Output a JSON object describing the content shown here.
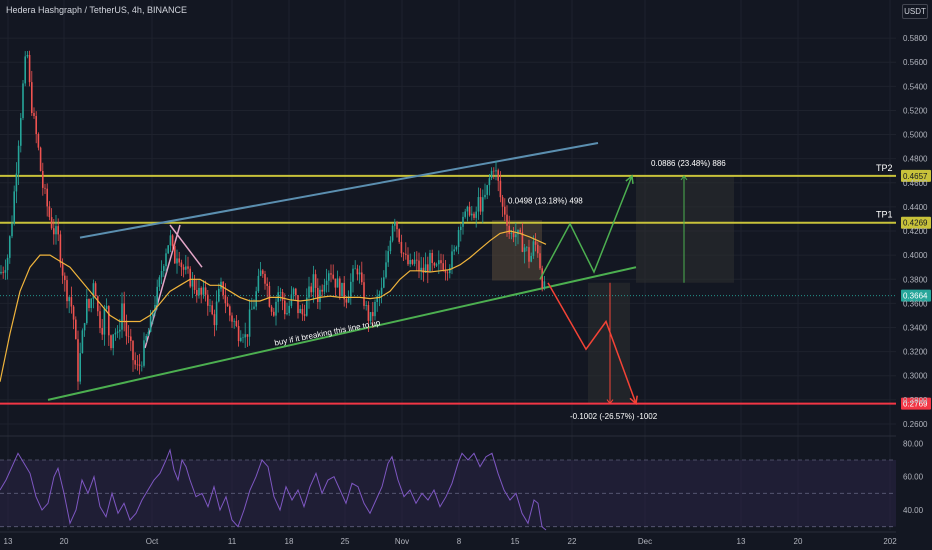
{
  "header": {
    "symbol": "Hedera Hashgraph / TetherUS",
    "interval": "4h",
    "exchange": "BINANCE",
    "currency": "USDT"
  },
  "colors": {
    "background": "#131722",
    "grid": "#1e222d",
    "axis_text": "#b2b5be",
    "candle_up": "#26a69a",
    "candle_down": "#ef5350",
    "ma": "#f0b43c",
    "channel_upper": "#5b8fb0",
    "channel_lower": "#4caf50",
    "tp_level": "#c8c23a",
    "stop_level": "#f23645",
    "rsi": "#7e57c2",
    "rsi_band": "#2a2545",
    "projection_up": "#4caf50",
    "projection_down": "#f44336"
  },
  "chart_data": [
    {
      "type": "candlestick",
      "title": "",
      "x_ticks": [
        "13",
        "20",
        "Oct",
        "11",
        "18",
        "25",
        "Nov",
        "8",
        "15",
        "22",
        "Dec",
        "13",
        "20",
        "202"
      ],
      "y_ticks": [
        0.26,
        0.28,
        0.3,
        0.32,
        0.34,
        0.36,
        0.38,
        0.4,
        0.42,
        0.44,
        0.46,
        0.48,
        0.5,
        0.52,
        0.54,
        0.56,
        0.58
      ],
      "y_tick_labels": [
        "0.2600",
        "0.2800",
        "0.3000",
        "0.3200",
        "0.3400",
        "0.3600",
        "0.3800",
        "0.4000",
        "0.4200",
        "0.4400",
        "0.4600",
        "0.4800",
        "0.5000",
        "0.5200",
        "0.5400",
        "0.5600",
        "0.5800"
      ],
      "ylim": [
        0.255,
        0.595
      ],
      "price_path": [
        [
          0,
          0.385
        ],
        [
          4,
          0.39
        ],
        [
          8,
          0.4
        ],
        [
          12,
          0.43
        ],
        [
          16,
          0.47
        ],
        [
          20,
          0.51
        ],
        [
          24,
          0.55
        ],
        [
          27,
          0.57
        ],
        [
          30,
          0.535
        ],
        [
          34,
          0.51
        ],
        [
          38,
          0.49
        ],
        [
          42,
          0.46
        ],
        [
          46,
          0.445
        ],
        [
          50,
          0.43
        ],
        [
          54,
          0.42
        ],
        [
          58,
          0.415
        ],
        [
          62,
          0.39
        ],
        [
          66,
          0.37
        ],
        [
          70,
          0.365
        ],
        [
          74,
          0.345
        ],
        [
          78,
          0.3
        ],
        [
          82,
          0.33
        ],
        [
          86,
          0.36
        ],
        [
          90,
          0.355
        ],
        [
          94,
          0.385
        ],
        [
          98,
          0.35
        ],
        [
          102,
          0.34
        ],
        [
          106,
          0.36
        ],
        [
          110,
          0.325
        ],
        [
          114,
          0.34
        ],
        [
          118,
          0.33
        ],
        [
          122,
          0.36
        ],
        [
          126,
          0.335
        ],
        [
          130,
          0.325
        ],
        [
          134,
          0.31
        ],
        [
          138,
          0.305
        ],
        [
          142,
          0.315
        ],
        [
          146,
          0.33
        ],
        [
          150,
          0.34
        ],
        [
          154,
          0.36
        ],
        [
          158,
          0.37
        ],
        [
          162,
          0.39
        ],
        [
          166,
          0.405
        ],
        [
          170,
          0.415
        ],
        [
          174,
          0.395
        ],
        [
          178,
          0.405
        ],
        [
          182,
          0.39
        ],
        [
          186,
          0.385
        ],
        [
          190,
          0.38
        ],
        [
          194,
          0.375
        ],
        [
          198,
          0.37
        ],
        [
          202,
          0.365
        ],
        [
          206,
          0.37
        ],
        [
          210,
          0.355
        ],
        [
          214,
          0.345
        ],
        [
          218,
          0.365
        ],
        [
          222,
          0.375
        ],
        [
          226,
          0.36
        ],
        [
          230,
          0.35
        ],
        [
          234,
          0.345
        ],
        [
          238,
          0.335
        ],
        [
          242,
          0.34
        ],
        [
          246,
          0.33
        ],
        [
          250,
          0.35
        ],
        [
          254,
          0.36
        ],
        [
          258,
          0.375
        ],
        [
          262,
          0.39
        ],
        [
          266,
          0.38
        ],
        [
          270,
          0.36
        ],
        [
          274,
          0.355
        ],
        [
          278,
          0.37
        ],
        [
          282,
          0.365
        ],
        [
          286,
          0.35
        ],
        [
          290,
          0.36
        ],
        [
          294,
          0.37
        ],
        [
          298,
          0.355
        ],
        [
          302,
          0.35
        ],
        [
          306,
          0.36
        ],
        [
          310,
          0.37
        ],
        [
          314,
          0.38
        ],
        [
          318,
          0.365
        ],
        [
          322,
          0.375
        ],
        [
          326,
          0.385
        ],
        [
          330,
          0.39
        ],
        [
          334,
          0.38
        ],
        [
          338,
          0.375
        ],
        [
          342,
          0.37
        ],
        [
          346,
          0.365
        ],
        [
          350,
          0.375
        ],
        [
          354,
          0.385
        ],
        [
          358,
          0.39
        ],
        [
          362,
          0.37
        ],
        [
          366,
          0.355
        ],
        [
          370,
          0.345
        ],
        [
          374,
          0.355
        ],
        [
          378,
          0.365
        ],
        [
          382,
          0.37
        ],
        [
          386,
          0.39
        ],
        [
          390,
          0.415
        ],
        [
          394,
          0.435
        ],
        [
          398,
          0.42
        ],
        [
          402,
          0.405
        ],
        [
          406,
          0.395
        ],
        [
          410,
          0.39
        ],
        [
          414,
          0.395
        ],
        [
          418,
          0.39
        ],
        [
          422,
          0.385
        ],
        [
          426,
          0.39
        ],
        [
          430,
          0.395
        ],
        [
          434,
          0.385
        ],
        [
          438,
          0.39
        ],
        [
          442,
          0.395
        ],
        [
          446,
          0.39
        ],
        [
          450,
          0.395
        ],
        [
          454,
          0.4
        ],
        [
          458,
          0.42
        ],
        [
          462,
          0.435
        ],
        [
          466,
          0.43
        ],
        [
          470,
          0.44
        ],
        [
          474,
          0.425
        ],
        [
          478,
          0.445
        ],
        [
          482,
          0.44
        ],
        [
          486,
          0.45
        ],
        [
          490,
          0.465
        ],
        [
          494,
          0.475
        ],
        [
          498,
          0.46
        ],
        [
          502,
          0.44
        ],
        [
          506,
          0.435
        ],
        [
          510,
          0.415
        ],
        [
          514,
          0.42
        ],
        [
          518,
          0.415
        ],
        [
          522,
          0.41
        ],
        [
          526,
          0.405
        ],
        [
          530,
          0.395
        ],
        [
          534,
          0.41
        ],
        [
          538,
          0.405
        ],
        [
          542,
          0.38
        ],
        [
          546,
          0.3664
        ]
      ],
      "moving_average": [
        [
          0,
          0.295
        ],
        [
          10,
          0.335
        ],
        [
          20,
          0.37
        ],
        [
          30,
          0.39
        ],
        [
          40,
          0.4
        ],
        [
          50,
          0.4
        ],
        [
          60,
          0.395
        ],
        [
          70,
          0.39
        ],
        [
          80,
          0.38
        ],
        [
          90,
          0.37
        ],
        [
          100,
          0.36
        ],
        [
          110,
          0.35
        ],
        [
          120,
          0.345
        ],
        [
          130,
          0.345
        ],
        [
          140,
          0.345
        ],
        [
          150,
          0.35
        ],
        [
          160,
          0.36
        ],
        [
          170,
          0.37
        ],
        [
          180,
          0.375
        ],
        [
          190,
          0.38
        ],
        [
          200,
          0.38
        ],
        [
          210,
          0.375
        ],
        [
          220,
          0.375
        ],
        [
          230,
          0.37
        ],
        [
          240,
          0.365
        ],
        [
          250,
          0.362
        ],
        [
          260,
          0.362
        ],
        [
          270,
          0.365
        ],
        [
          280,
          0.365
        ],
        [
          290,
          0.363
        ],
        [
          300,
          0.362
        ],
        [
          310,
          0.363
        ],
        [
          320,
          0.365
        ],
        [
          330,
          0.366
        ],
        [
          340,
          0.365
        ],
        [
          350,
          0.365
        ],
        [
          360,
          0.365
        ],
        [
          370,
          0.364
        ],
        [
          380,
          0.365
        ],
        [
          390,
          0.37
        ],
        [
          400,
          0.38
        ],
        [
          410,
          0.387
        ],
        [
          420,
          0.387
        ],
        [
          430,
          0.386
        ],
        [
          440,
          0.387
        ],
        [
          450,
          0.388
        ],
        [
          460,
          0.392
        ],
        [
          470,
          0.398
        ],
        [
          480,
          0.405
        ],
        [
          490,
          0.412
        ],
        [
          500,
          0.418
        ],
        [
          510,
          0.42
        ],
        [
          520,
          0.418
        ],
        [
          530,
          0.415
        ],
        [
          538,
          0.412
        ],
        [
          546,
          0.409
        ]
      ],
      "levels": [
        {
          "name": "TP2",
          "price": 0.4657,
          "price_label": "0.4657"
        },
        {
          "name": "TP1",
          "price": 0.4269,
          "price_label": "0.4269"
        },
        {
          "name": "",
          "price": 0.2769,
          "price_label": "0.2769"
        }
      ],
      "current_price": {
        "price": 0.3664,
        "label": "0.3664"
      },
      "channel": {
        "upper": [
          [
            80,
            0.4145
          ],
          [
            598,
            0.493
          ]
        ],
        "lower": [
          [
            48,
            0.28
          ],
          [
            636,
            0.39
          ]
        ]
      },
      "pink_lines": [
        [
          [
            145,
            0.323
          ],
          [
            180,
            0.425
          ]
        ],
        [
          [
            170,
            0.425
          ],
          [
            202,
            0.39
          ]
        ]
      ],
      "annotations": [
        {
          "text": "buy if it breaking this line to up",
          "at": [
            275,
            0.325
          ],
          "rotate": -11
        },
        {
          "text": "0.0498 (13.18%) 498",
          "at": [
            508,
            0.443
          ]
        },
        {
          "text": "0.0886 (23.48%) 886",
          "at": [
            651,
            0.474
          ]
        },
        {
          "text": "-0.1002 (-26.57%) -1002",
          "at": [
            570,
            0.264
          ]
        }
      ],
      "measure_boxes": [
        {
          "x": [
            492,
            542
          ],
          "from": 0.379,
          "to": 0.429,
          "color": "#5a4a3a"
        },
        {
          "x": [
            636,
            734
          ],
          "from": 0.3771,
          "to": 0.4657,
          "color": "#2e3030"
        },
        {
          "x": [
            588,
            630
          ],
          "from": 0.2769,
          "to": 0.3771,
          "color": "#2e3030"
        }
      ],
      "measure_arrows": [
        {
          "x": 684,
          "from": 0.3771,
          "to": 0.4657,
          "color": "#4caf50"
        },
        {
          "x": 610,
          "from": 0.3771,
          "to": 0.2769,
          "color": "#f44336"
        }
      ],
      "projection_up": [
        [
          540,
          0.38
        ],
        [
          570,
          0.426
        ],
        [
          594,
          0.386
        ],
        [
          632,
          0.4657
        ]
      ],
      "projection_down": [
        [
          548,
          0.377
        ],
        [
          586,
          0.322
        ],
        [
          606,
          0.345
        ],
        [
          636,
          0.2769
        ]
      ]
    },
    {
      "type": "line",
      "title": "",
      "y_ticks": [
        40,
        60,
        80
      ],
      "y_tick_labels": [
        "40.00",
        "60.00",
        "80.00"
      ],
      "ylim": [
        28,
        82
      ],
      "band": [
        30,
        70
      ],
      "midline": 50,
      "values": [
        [
          0,
          52
        ],
        [
          6,
          58
        ],
        [
          12,
          66
        ],
        [
          18,
          74
        ],
        [
          24,
          68
        ],
        [
          30,
          62
        ],
        [
          36,
          48
        ],
        [
          42,
          40
        ],
        [
          48,
          44
        ],
        [
          54,
          60
        ],
        [
          58,
          65
        ],
        [
          64,
          50
        ],
        [
          70,
          32
        ],
        [
          76,
          40
        ],
        [
          82,
          58
        ],
        [
          88,
          50
        ],
        [
          94,
          60
        ],
        [
          100,
          42
        ],
        [
          106,
          36
        ],
        [
          112,
          50
        ],
        [
          118,
          38
        ],
        [
          124,
          44
        ],
        [
          130,
          34
        ],
        [
          136,
          38
        ],
        [
          142,
          46
        ],
        [
          148,
          52
        ],
        [
          154,
          58
        ],
        [
          160,
          62
        ],
        [
          166,
          70
        ],
        [
          170,
          76
        ],
        [
          174,
          64
        ],
        [
          178,
          58
        ],
        [
          182,
          70
        ],
        [
          186,
          66
        ],
        [
          190,
          58
        ],
        [
          196,
          48
        ],
        [
          202,
          50
        ],
        [
          208,
          42
        ],
        [
          214,
          54
        ],
        [
          220,
          40
        ],
        [
          226,
          48
        ],
        [
          232,
          34
        ],
        [
          238,
          30
        ],
        [
          244,
          40
        ],
        [
          250,
          52
        ],
        [
          256,
          60
        ],
        [
          262,
          70
        ],
        [
          268,
          66
        ],
        [
          274,
          48
        ],
        [
          280,
          40
        ],
        [
          286,
          54
        ],
        [
          292,
          46
        ],
        [
          298,
          52
        ],
        [
          304,
          42
        ],
        [
          310,
          54
        ],
        [
          316,
          62
        ],
        [
          322,
          50
        ],
        [
          328,
          58
        ],
        [
          334,
          60
        ],
        [
          340,
          52
        ],
        [
          346,
          44
        ],
        [
          352,
          56
        ],
        [
          358,
          54
        ],
        [
          364,
          44
        ],
        [
          370,
          38
        ],
        [
          376,
          46
        ],
        [
          382,
          54
        ],
        [
          388,
          68
        ],
        [
          392,
          72
        ],
        [
          398,
          58
        ],
        [
          404,
          48
        ],
        [
          410,
          52
        ],
        [
          416,
          44
        ],
        [
          422,
          50
        ],
        [
          428,
          46
        ],
        [
          434,
          52
        ],
        [
          440,
          42
        ],
        [
          446,
          48
        ],
        [
          452,
          56
        ],
        [
          458,
          68
        ],
        [
          462,
          74
        ],
        [
          468,
          70
        ],
        [
          474,
          74
        ],
        [
          480,
          66
        ],
        [
          486,
          72
        ],
        [
          492,
          74
        ],
        [
          498,
          62
        ],
        [
          504,
          52
        ],
        [
          510,
          46
        ],
        [
          516,
          50
        ],
        [
          522,
          38
        ],
        [
          528,
          32
        ],
        [
          534,
          46
        ],
        [
          538,
          44
        ],
        [
          542,
          30
        ],
        [
          546,
          28
        ]
      ]
    }
  ]
}
